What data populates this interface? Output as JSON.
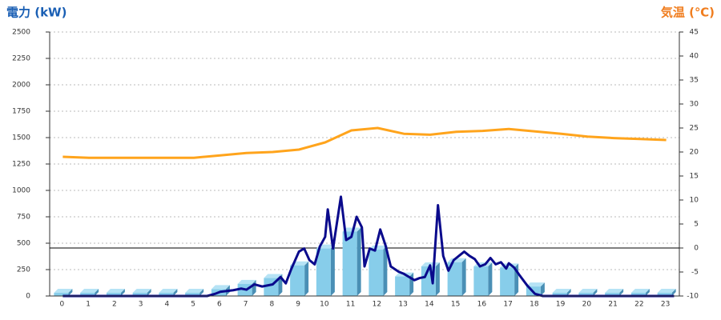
{
  "chart_data": {
    "type": "bar_line",
    "title_left": "電力 (kW)",
    "title_right": "気温 (℃)",
    "categories": [
      "0",
      "1",
      "2",
      "3",
      "4",
      "5",
      "6",
      "7",
      "8",
      "9",
      "10",
      "11",
      "12",
      "13",
      "14",
      "15",
      "16",
      "17",
      "18",
      "19",
      "20",
      "21",
      "22",
      "23"
    ],
    "ylim": [
      0,
      2500
    ],
    "yticks": [
      0,
      250,
      500,
      750,
      1000,
      1250,
      1500,
      1750,
      2000,
      2250,
      2500
    ],
    "y2lim": [
      -10,
      45
    ],
    "y2ticks": [
      -10,
      -5,
      0,
      5,
      10,
      15,
      20,
      25,
      30,
      35,
      40,
      45
    ],
    "grid": true,
    "reference_line": {
      "axis": "y2",
      "value": 0
    },
    "series": [
      {
        "type": "bar",
        "color": "#87cdea",
        "values": [
          30,
          30,
          30,
          30,
          30,
          30,
          65,
          115,
          170,
          290,
          450,
          610,
          440,
          185,
          280,
          320,
          280,
          270,
          90,
          30,
          30,
          30,
          30,
          30
        ]
      },
      {
        "type": "line",
        "color": "#0a0a8c",
        "x": [
          0,
          5.5,
          5.8,
          6.0,
          6.5,
          6.8,
          7.0,
          7.3,
          7.6,
          8.0,
          8.3,
          8.5,
          8.7,
          9.0,
          9.2,
          9.4,
          9.6,
          9.8,
          10.0,
          10.1,
          10.3,
          10.6,
          10.8,
          11.0,
          11.2,
          11.4,
          11.5,
          11.7,
          11.9,
          12.1,
          12.3,
          12.5,
          12.8,
          13.0,
          13.2,
          13.4,
          13.6,
          13.8,
          14.0,
          14.1,
          14.3,
          14.5,
          14.7,
          14.9,
          15.1,
          15.3,
          15.5,
          15.7,
          15.9,
          16.1,
          16.3,
          16.5,
          16.7,
          16.9,
          17.0,
          17.2,
          17.4,
          17.7,
          18.0,
          18.3,
          23.3
        ],
        "values": [
          0,
          0,
          20,
          40,
          55,
          70,
          60,
          110,
          90,
          110,
          180,
          120,
          250,
          420,
          450,
          340,
          300,
          470,
          560,
          820,
          450,
          940,
          530,
          560,
          750,
          650,
          280,
          450,
          430,
          630,
          480,
          280,
          230,
          210,
          180,
          150,
          170,
          180,
          290,
          120,
          860,
          380,
          240,
          340,
          380,
          420,
          380,
          350,
          280,
          300,
          360,
          300,
          320,
          260,
          310,
          270,
          200,
          100,
          20,
          0,
          0
        ]
      },
      {
        "type": "line",
        "axis": "y2",
        "color": "#ffa41c",
        "values": [
          19,
          18.8,
          18.8,
          18.8,
          18.8,
          18.8,
          19.3,
          19.8,
          20,
          20.5,
          22,
          24.5,
          25,
          23.8,
          23.6,
          24.2,
          24.4,
          24.8,
          24.3,
          23.8,
          23.2,
          22.9,
          22.7,
          22.5
        ]
      }
    ]
  }
}
